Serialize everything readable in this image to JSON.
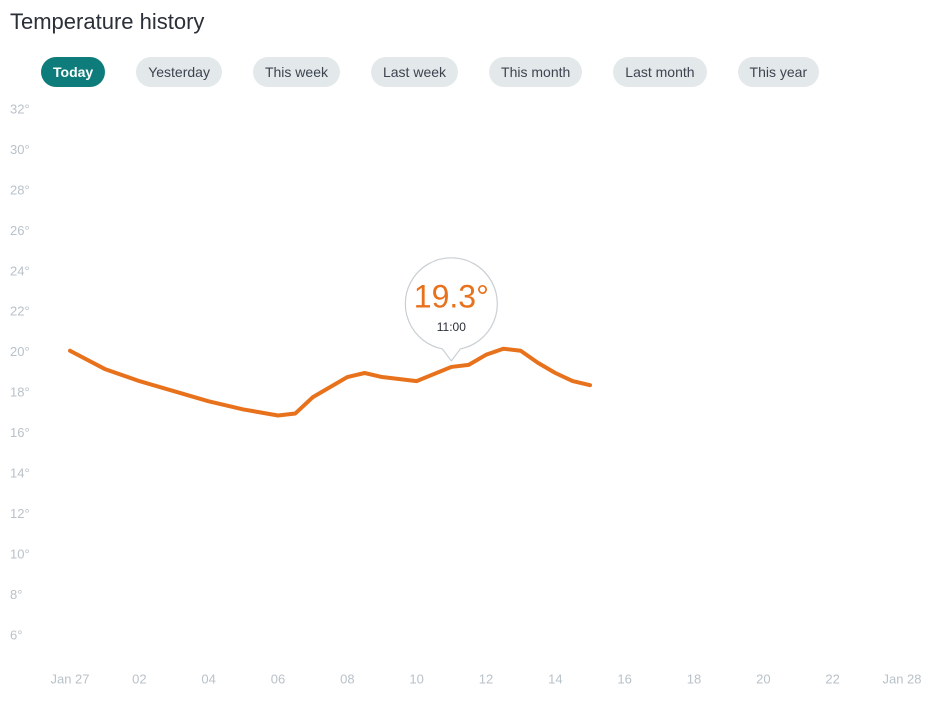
{
  "header": {
    "title": "Temperature history"
  },
  "tabs": [
    {
      "label": "Today",
      "active": true
    },
    {
      "label": "Yesterday"
    },
    {
      "label": "This week"
    },
    {
      "label": "Last week"
    },
    {
      "label": "This month"
    },
    {
      "label": "Last month"
    },
    {
      "label": "This year"
    }
  ],
  "chart_data": {
    "type": "line",
    "x": [
      0,
      1,
      2,
      3,
      4,
      5,
      6,
      6.5,
      7,
      8,
      8.5,
      9,
      10,
      11,
      11.5,
      12,
      12.5,
      13,
      13.5,
      14,
      14.5,
      15
    ],
    "values": [
      20.1,
      19.2,
      18.6,
      18.1,
      17.6,
      17.2,
      16.9,
      17.0,
      17.8,
      18.8,
      19.0,
      18.8,
      18.6,
      19.3,
      19.4,
      19.9,
      20.2,
      20.1,
      19.5,
      19.0,
      18.6,
      18.4
    ],
    "color": "#e8711c",
    "xlim": [
      0,
      24
    ],
    "xticks": [
      {
        "value": 0,
        "label": "Jan 27"
      },
      {
        "value": 2,
        "label": "02"
      },
      {
        "value": 4,
        "label": "04"
      },
      {
        "value": 6,
        "label": "06"
      },
      {
        "value": 8,
        "label": "08"
      },
      10,
      12,
      14,
      16,
      18,
      20,
      22,
      {
        "value": 24,
        "label": "Jan 28"
      }
    ],
    "ylim": [
      6,
      32
    ],
    "yticks": [
      {
        "value": 32,
        "label": "32°"
      },
      {
        "value": 30,
        "label": "30°"
      },
      {
        "value": 28,
        "label": "28°"
      },
      {
        "value": 26,
        "label": "26°"
      },
      {
        "value": 24,
        "label": "24°"
      },
      {
        "value": 22,
        "label": "22°"
      },
      {
        "value": 20,
        "label": "20°"
      },
      {
        "value": 18,
        "label": "18°"
      },
      {
        "value": 16,
        "label": "16°"
      },
      {
        "value": 14,
        "label": "14°"
      },
      {
        "value": 12,
        "label": "12°"
      },
      {
        "value": 10,
        "label": "10°"
      },
      {
        "value": 8,
        "label": "8°"
      },
      {
        "value": 6,
        "label": "6°"
      }
    ],
    "tooltip": {
      "x": 11,
      "value": 19.3,
      "label": "19.3°",
      "time": "11:00"
    }
  }
}
